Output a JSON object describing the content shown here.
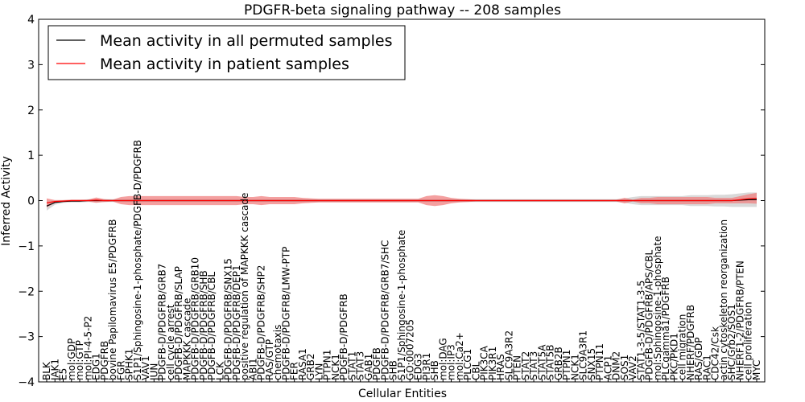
{
  "chart_data": {
    "type": "line",
    "title": "PDGFR-beta signaling pathway -- 208 samples",
    "xlabel": "Cellular Entities",
    "ylabel": "Inferred Activity",
    "ylim": [
      -4,
      4
    ],
    "yticks": [
      "4",
      "3",
      "2",
      "1",
      "0",
      "−1",
      "−2",
      "−3",
      "−4"
    ],
    "ytick_values": [
      4,
      3,
      2,
      1,
      0,
      -1,
      -2,
      -3,
      -4
    ],
    "grid": false,
    "legend_position": "upper-left",
    "colors": {
      "permuted": "#000000",
      "patient": "#ff0000",
      "patient_band": "#f08080",
      "permuted_band": "#c0c0c0"
    },
    "categories": [
      "BLK",
      "JAK1",
      "E5",
      "mol:GDP",
      "mol:GTP",
      "mol:PI-4-5-P2",
      "EDG1",
      "PDGFRB",
      "bovine Papilomavirus E5/PDGFRB",
      "FGR",
      "SPHK1",
      "S1P1/Sphingosine-1-phosphate/PDGFB-D/PDGFRB",
      "VAV1",
      "JUN",
      "PDGFB-D/PDGFRB/GRB7",
      "cell cycle arrest",
      "PDGFB-D/PDGFRB/SLAP",
      "MAPKKK cascade",
      "PDGFB-D/PDGFRB/GRB10",
      "PDGFB-D/PDGFRB/SHB",
      "PDGFB-D/PDGFRB/CBL",
      "LCK",
      "PDGFB-D/PDGFRB/SNX15",
      "PDGFB-D/PDGFRB/DEP1",
      "positive regulation of MAPKKK cascade",
      "ABI1",
      "PDGFB-D/PDGFRB/SHP2",
      "RAS/GTP",
      "chemotaxis",
      "PDGFB-D/PDGFRB/LMW-PTP",
      "FER",
      "RASA1",
      "GRB2",
      "LYN",
      "PTPN1",
      "NCK1",
      "PDGFB-D/PDGFRB",
      "STAT1",
      "STAT3",
      "GAB1",
      "PDGFB",
      "PDGFB-D/PDGFRB/GRB7/SHC",
      "SHB",
      "S1P1/Sphingosine-1-phosphate",
      "GO:0007205",
      "EDG3",
      "PI3R1",
      "SHB",
      "mol:DAG",
      "mol:IP3",
      "mol:Ca2+",
      "PLCG1",
      "CBL",
      "PIK3CA",
      "PIK3R1",
      "HRAS",
      "SLC9A3R2",
      "PTEN",
      "STAT2",
      "STAT3",
      "STAT5A",
      "STAT5B",
      "GRB2B",
      "PTPN1",
      "NCK1",
      "SLC9A3R1",
      "SNX15",
      "PTPN11",
      "ACP1",
      "DNM2",
      "SOS1",
      "VAV2",
      "STAT1-3-5/STAT1-3-5",
      "PDGFB-D/PDGFRB/APS/CBL",
      "mol:Sphingosine-1-phosphate",
      "PLCgamma1/PDGFRB",
      "PKC/PKD1",
      "cell migration",
      "NHERF/PDGFRB",
      "RAS/GDP",
      "RAC1",
      "CDC42/Csk",
      "actin cytoskeleton reorganization",
      "SHC/Grb2/SOS1",
      "NHERF1-2/PDGFRB/PTEN",
      "cell proliferation",
      "MYC"
    ],
    "series": [
      {
        "name": "Mean activity in all permuted samples",
        "color": "#000000",
        "values": [
          -0.12,
          -0.04,
          -0.02,
          -0.01,
          -0.01,
          0,
          0,
          0,
          0,
          0,
          0,
          0,
          0,
          0,
          0,
          0,
          0,
          0,
          0,
          0,
          0,
          0,
          0,
          0,
          0,
          0,
          0,
          0,
          0,
          0,
          0,
          0,
          0,
          0,
          0,
          0,
          0,
          0,
          0,
          0,
          0,
          0,
          0,
          0,
          0,
          0,
          0,
          0,
          0,
          0,
          0,
          0,
          0,
          0,
          0,
          0,
          0,
          0,
          0,
          0,
          0,
          0,
          0,
          0,
          0,
          0,
          0,
          0,
          0,
          0,
          0,
          0,
          0,
          0,
          0,
          0,
          0,
          0,
          0,
          0,
          0,
          0,
          0,
          0,
          0.01,
          0.02,
          0.02
        ],
        "band": [
          0.1,
          0.05,
          0.03,
          0.03,
          0.03,
          0.03,
          0.03,
          0.03,
          0.03,
          0.03,
          0.03,
          0.03,
          0.03,
          0.03,
          0.03,
          0.03,
          0.03,
          0.03,
          0.03,
          0.03,
          0.03,
          0.03,
          0.03,
          0.03,
          0.03,
          0.03,
          0.03,
          0.03,
          0.03,
          0.03,
          0.03,
          0.03,
          0.03,
          0.03,
          0.03,
          0.03,
          0.03,
          0.03,
          0.03,
          0.03,
          0.03,
          0.03,
          0.03,
          0.03,
          0.03,
          0.03,
          0.03,
          0.03,
          0.03,
          0.03,
          0.03,
          0.03,
          0.03,
          0.03,
          0.03,
          0.03,
          0.03,
          0.03,
          0.03,
          0.03,
          0.03,
          0.03,
          0.03,
          0.03,
          0.03,
          0.03,
          0.03,
          0.03,
          0.03,
          0.03,
          0.05,
          0.08,
          0.1,
          0.1,
          0.1,
          0.1,
          0.1,
          0.1,
          0.12,
          0.12,
          0.12,
          0.13,
          0.13,
          0.14,
          0.15,
          0.16,
          0.16
        ]
      },
      {
        "name": "Mean activity in patient samples",
        "color": "#ff0000",
        "values": [
          -0.05,
          -0.02,
          -0.01,
          0,
          0,
          0,
          0.01,
          0,
          0,
          0,
          0,
          0,
          0,
          0,
          0,
          0,
          0,
          0,
          0,
          0,
          0,
          0,
          0,
          0,
          0,
          0,
          0,
          0,
          0,
          0,
          0,
          0,
          0,
          0,
          0,
          0,
          0,
          0,
          0,
          0,
          0,
          0,
          0,
          0,
          0,
          0,
          0,
          0,
          0,
          0,
          0,
          0,
          0,
          0,
          0,
          0,
          0,
          0,
          0,
          0,
          0,
          0,
          0,
          0,
          0,
          0,
          0,
          0,
          0,
          0,
          0,
          0,
          0,
          0,
          0,
          0,
          0,
          0,
          0,
          0,
          0,
          0,
          0,
          0,
          0.02,
          0.04,
          0.05
        ],
        "band": [
          0.1,
          0.03,
          0.02,
          0.02,
          0.02,
          0.02,
          0.06,
          0.03,
          0.02,
          0.08,
          0.1,
          0.1,
          0.1,
          0.1,
          0.1,
          0.1,
          0.1,
          0.1,
          0.1,
          0.1,
          0.1,
          0.1,
          0.1,
          0.1,
          0.08,
          0.08,
          0.1,
          0.08,
          0.08,
          0.08,
          0.08,
          0.06,
          0.05,
          0.04,
          0.04,
          0.04,
          0.04,
          0.04,
          0.04,
          0.04,
          0.04,
          0.04,
          0.04,
          0.04,
          0.04,
          0.04,
          0.1,
          0.12,
          0.1,
          0.06,
          0.04,
          0.03,
          0.02,
          0.02,
          0.02,
          0.02,
          0.02,
          0.02,
          0.02,
          0.02,
          0.02,
          0.02,
          0.02,
          0.02,
          0.02,
          0.02,
          0.02,
          0.02,
          0.02,
          0.02,
          0.06,
          0.02,
          0.06,
          0.06,
          0.08,
          0.08,
          0.08,
          0.08,
          0.08,
          0.08,
          0.08,
          0.06,
          0.06,
          0.06,
          0.08,
          0.1,
          0.12
        ]
      }
    ]
  }
}
